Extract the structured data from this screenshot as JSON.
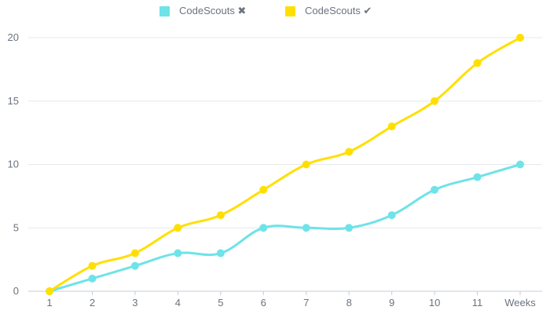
{
  "chart_data": {
    "type": "line",
    "categories": [
      "1",
      "2",
      "3",
      "4",
      "5",
      "6",
      "7",
      "8",
      "9",
      "10",
      "11",
      "Weeks"
    ],
    "series": [
      {
        "name": "CodeScouts ✖",
        "color": "#6ee3e8",
        "values": [
          0,
          1,
          2,
          3,
          3,
          5,
          5,
          5,
          6,
          8,
          9,
          10
        ]
      },
      {
        "name": "CodeScouts ✔",
        "color": "#ffdf00",
        "values": [
          0,
          2,
          3,
          5,
          6,
          8,
          10,
          11,
          13,
          15,
          18,
          20
        ]
      }
    ],
    "yticks": [
      "0",
      "5",
      "10",
      "15",
      "20"
    ],
    "ylim": [
      0,
      20
    ],
    "grid": true,
    "legend_position": "top-center"
  }
}
